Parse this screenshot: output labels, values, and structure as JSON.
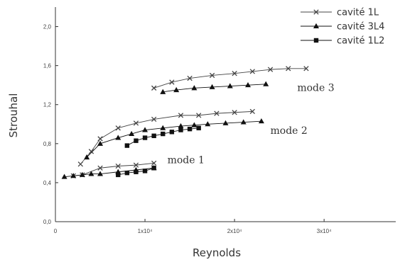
{
  "chart_data": {
    "type": "scatter",
    "xlabel": "Reynolds",
    "ylabel": "Strouhal",
    "xlim": [
      0,
      38000
    ],
    "ylim": [
      0,
      2.2
    ],
    "x_ticks": [
      {
        "value": 0,
        "label": "0"
      },
      {
        "value": 10000,
        "label": "1x10⁴"
      },
      {
        "value": 20000,
        "label": "2x10⁴"
      },
      {
        "value": 30000,
        "label": "3x10⁴"
      }
    ],
    "y_ticks": [
      {
        "value": 0,
        "label": "0,0"
      },
      {
        "value": 0.4,
        "label": "0,4"
      },
      {
        "value": 0.8,
        "label": "0,8"
      },
      {
        "value": 1.2,
        "label": "1,2"
      },
      {
        "value": 1.6,
        "label": "1,6"
      },
      {
        "value": 2.0,
        "label": "2,0"
      }
    ],
    "grid": false,
    "legend_position": "top-right",
    "series": [
      {
        "name": "cavité 1L",
        "marker": "x",
        "color": "#444444",
        "segments": [
          {
            "x": [
              2000,
              3000,
              5000,
              7000,
              9000,
              11000
            ],
            "y": [
              0.47,
              0.48,
              0.55,
              0.57,
              0.58,
              0.6
            ]
          },
          {
            "x": [
              2800,
              4000,
              5000,
              7000,
              9000,
              11000,
              14000,
              16000,
              18000,
              20000,
              22000
            ],
            "y": [
              0.59,
              0.72,
              0.85,
              0.96,
              1.01,
              1.05,
              1.09,
              1.09,
              1.11,
              1.12,
              1.13
            ]
          },
          {
            "x": [
              11000,
              13000,
              15000,
              17500,
              20000,
              22000,
              24000,
              26000,
              28000
            ],
            "y": [
              1.37,
              1.43,
              1.47,
              1.5,
              1.52,
              1.54,
              1.56,
              1.57,
              1.57
            ]
          }
        ]
      },
      {
        "name": "cavité 3L4",
        "marker": "triangle",
        "color": "#111111",
        "segments": [
          {
            "x": [
              1000,
              2000,
              3000,
              4000,
              5000,
              7000,
              9000,
              11000
            ],
            "y": [
              0.46,
              0.47,
              0.48,
              0.49,
              0.49,
              0.51,
              0.53,
              0.55
            ]
          },
          {
            "x": [
              3500,
              5000,
              7000,
              8500,
              10000,
              12000,
              14000,
              15500,
              17000,
              19000,
              21000,
              23000
            ],
            "y": [
              0.66,
              0.8,
              0.86,
              0.9,
              0.94,
              0.96,
              0.98,
              0.99,
              1.0,
              1.01,
              1.02,
              1.03
            ]
          },
          {
            "x": [
              12000,
              13500,
              15500,
              17500,
              19500,
              21500,
              23500
            ],
            "y": [
              1.33,
              1.35,
              1.37,
              1.38,
              1.39,
              1.4,
              1.41
            ]
          }
        ]
      },
      {
        "name": "cavité 1L2",
        "marker": "square",
        "color": "#111111",
        "segments": [
          {
            "x": [
              7000,
              8000,
              9000,
              10000,
              11000
            ],
            "y": [
              0.48,
              0.5,
              0.51,
              0.52,
              0.55
            ]
          },
          {
            "x": [
              8000,
              9000,
              10000,
              11000,
              12000,
              13000,
              14000,
              15000,
              16000
            ],
            "y": [
              0.78,
              0.83,
              0.86,
              0.88,
              0.9,
              0.92,
              0.94,
              0.95,
              0.96
            ]
          }
        ]
      }
    ],
    "annotations": [
      {
        "text": "mode 1",
        "x": 12500,
        "y": 0.6
      },
      {
        "text": "mode 2",
        "x": 24000,
        "y": 0.9
      },
      {
        "text": "mode 3",
        "x": 27000,
        "y": 1.34
      }
    ]
  }
}
